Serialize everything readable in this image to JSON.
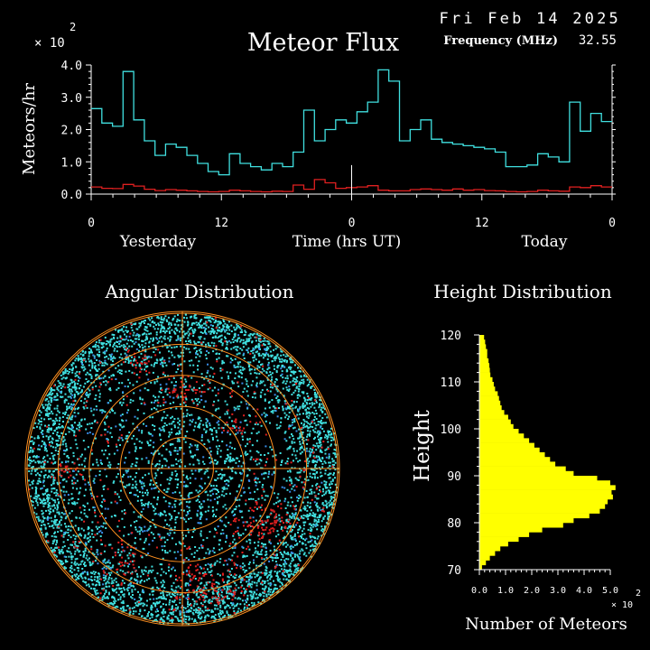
{
  "header": {
    "date": "Fri Feb 14 2025",
    "frequency_label": "Frequency (MHz)",
    "frequency_value": "32.55"
  },
  "colors": {
    "background": "#000000",
    "cyan": "#40e0e0",
    "red": "#e02020",
    "yellow": "#ffff00",
    "orange": "#ff9020",
    "axis": "#ffffff"
  },
  "chart_data": [
    {
      "type": "line",
      "title": "Meteor Flux",
      "ylabel": "Meteors/hr",
      "xlabel": "Time (hrs UT)",
      "y_multiplier": "× 10",
      "y_multiplier_exp": "2",
      "ylim": [
        0,
        4.0
      ],
      "y_ticks": [
        "0.0",
        "1.0",
        "2.0",
        "3.0",
        "4.0"
      ],
      "x_ticks": [
        {
          "hour": 0,
          "label": "0"
        },
        {
          "hour": 12,
          "label": "12"
        },
        {
          "hour": 24,
          "label": "0"
        },
        {
          "hour": 36,
          "label": "12"
        },
        {
          "hour": 48,
          "label": "0"
        }
      ],
      "x_range_hours": [
        0,
        48
      ],
      "day_labels": {
        "yesterday": "Yesterday",
        "today": "Today"
      },
      "series": [
        {
          "color": "cyan",
          "step": "pre",
          "values": [
            2.65,
            2.2,
            2.1,
            3.8,
            2.3,
            1.65,
            1.2,
            1.55,
            1.45,
            1.2,
            0.95,
            0.7,
            0.6,
            1.25,
            0.95,
            0.85,
            0.75,
            0.95,
            0.85,
            1.3,
            2.6,
            1.65,
            2.0,
            2.3,
            2.2,
            2.55,
            2.85,
            3.85,
            3.5,
            1.65,
            2.0,
            2.3,
            1.7,
            1.6,
            1.55,
            1.5,
            1.45,
            1.4,
            1.3,
            0.85,
            0.85,
            0.9,
            1.25,
            1.15,
            1.0,
            2.85,
            1.95,
            2.5,
            2.25
          ]
        },
        {
          "color": "red",
          "step": "pre",
          "values": [
            0.22,
            0.18,
            0.17,
            0.3,
            0.25,
            0.15,
            0.11,
            0.14,
            0.12,
            0.1,
            0.08,
            0.07,
            0.08,
            0.12,
            0.1,
            0.08,
            0.07,
            0.09,
            0.08,
            0.28,
            0.15,
            0.45,
            0.35,
            0.18,
            0.2,
            0.22,
            0.26,
            0.12,
            0.1,
            0.1,
            0.14,
            0.16,
            0.14,
            0.12,
            0.16,
            0.12,
            0.14,
            0.11,
            0.1,
            0.08,
            0.07,
            0.08,
            0.12,
            0.1,
            0.09,
            0.22,
            0.2,
            0.26,
            0.22
          ]
        }
      ]
    },
    {
      "type": "scatter",
      "title": "Angular Distribution",
      "projection": "polar",
      "ring_count": 5,
      "cluster_notes": [
        "dense cyan band near horizon",
        "sparse center",
        "red clusters in lower right and bottom"
      ]
    },
    {
      "type": "bar",
      "orientation": "horizontal",
      "title": "Height Distribution",
      "ylabel": "Height",
      "xlabel": "Number of Meteors",
      "x_multiplier": "× 10",
      "x_multiplier_exp": "2",
      "xlim": [
        0,
        5.0
      ],
      "x_ticks": [
        "0.0",
        "1.0",
        "2.0",
        "3.0",
        "4.0",
        "5.0"
      ],
      "ylim": [
        70,
        120
      ],
      "y_ticks": [
        "70",
        "80",
        "90",
        "100",
        "110",
        "120"
      ],
      "bin_width_km": 1,
      "height_bins": [
        70,
        71,
        72,
        73,
        74,
        75,
        76,
        77,
        78,
        79,
        80,
        81,
        82,
        83,
        84,
        85,
        86,
        87,
        88,
        89,
        90,
        91,
        92,
        93,
        94,
        95,
        96,
        97,
        98,
        99,
        100,
        101,
        102,
        103,
        104,
        105,
        106,
        107,
        108,
        109,
        110,
        111,
        112,
        113,
        114,
        115,
        116,
        117,
        118,
        119
      ],
      "values": [
        0.1,
        0.25,
        0.4,
        0.6,
        0.8,
        1.1,
        1.5,
        1.9,
        2.4,
        3.2,
        3.6,
        4.2,
        4.6,
        4.8,
        4.9,
        5.1,
        5.05,
        5.2,
        5.0,
        4.5,
        3.6,
        3.3,
        2.9,
        2.7,
        2.5,
        2.3,
        2.1,
        1.9,
        1.7,
        1.5,
        1.3,
        1.2,
        1.1,
        0.95,
        0.85,
        0.8,
        0.75,
        0.7,
        0.6,
        0.55,
        0.5,
        0.42,
        0.4,
        0.38,
        0.35,
        0.3,
        0.3,
        0.25,
        0.22,
        0.18
      ]
    }
  ]
}
